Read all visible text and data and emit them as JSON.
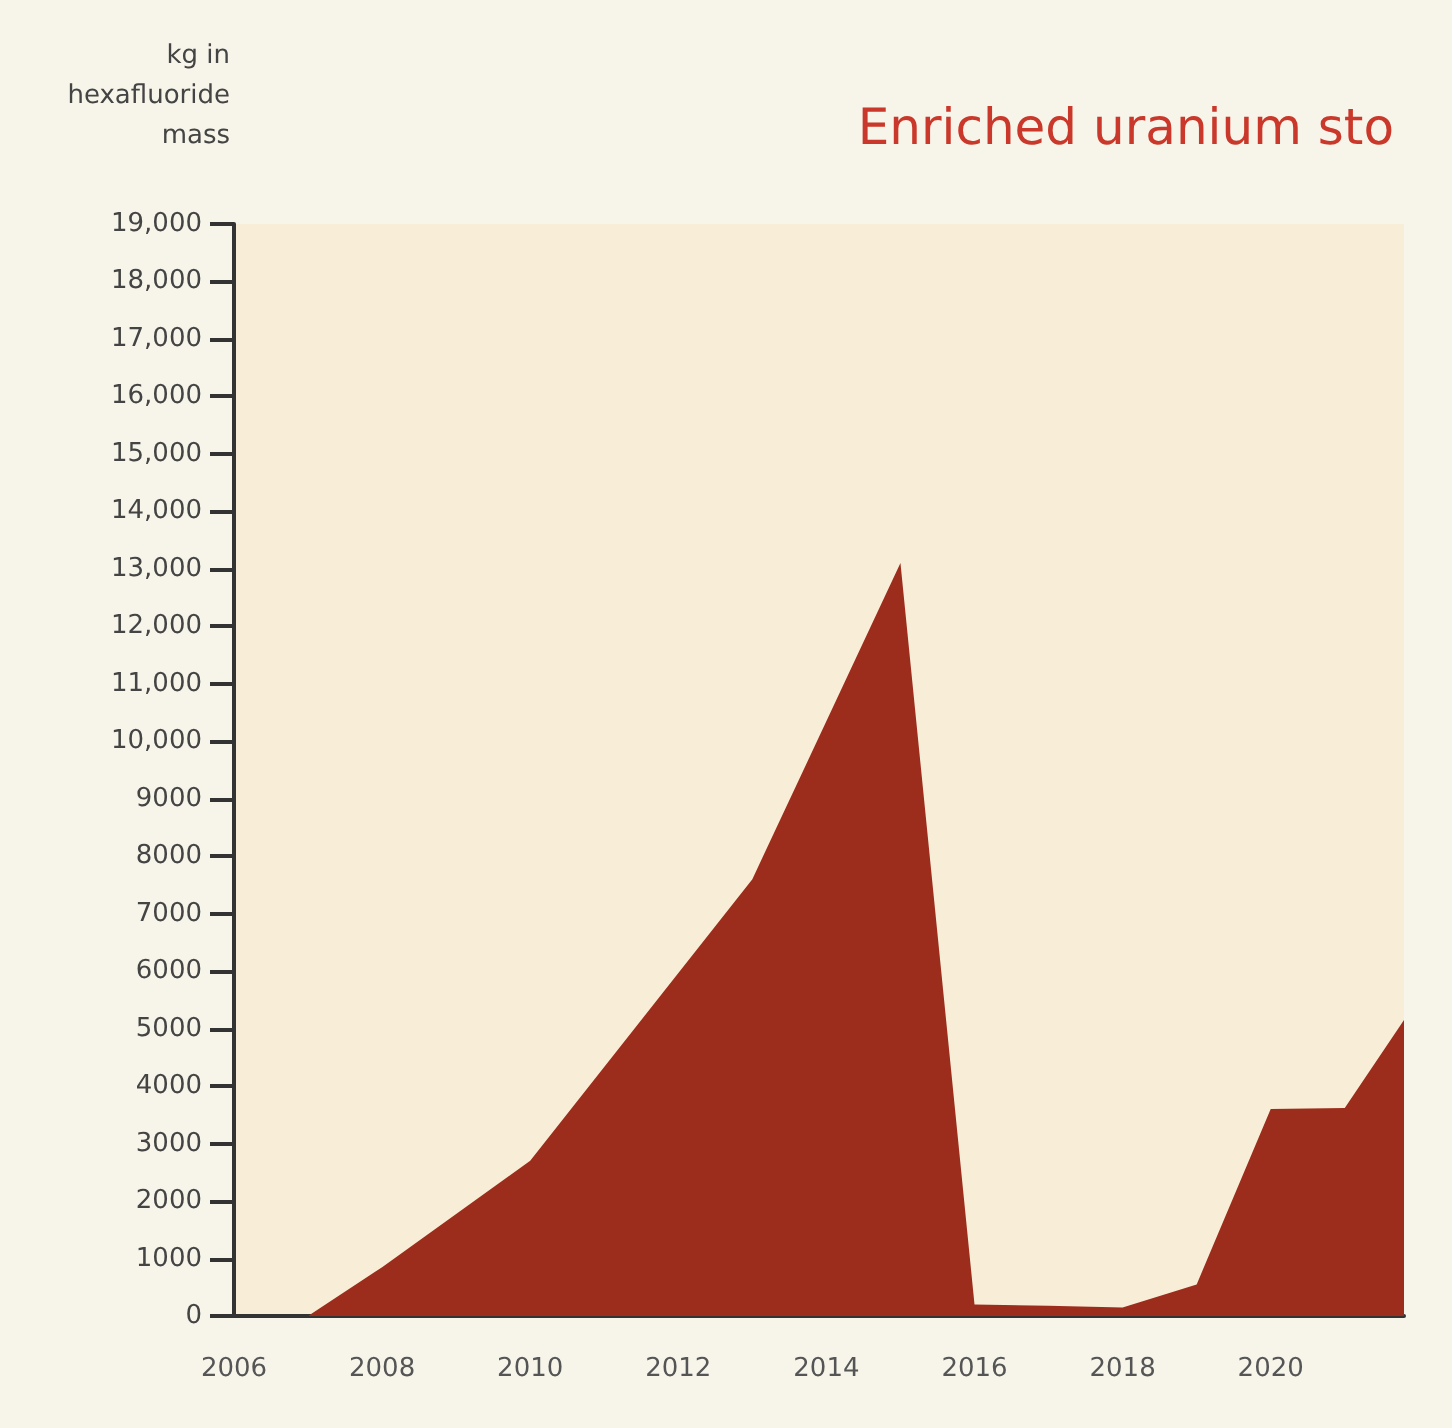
{
  "chart_data": {
    "type": "area",
    "title": "Enriched uranium sto",
    "ylabel": "kg in\nhexafluoride\nmass",
    "x": [
      2007,
      2008,
      2010,
      2013,
      2015,
      2016,
      2017,
      2018,
      2019,
      2020,
      2021,
      2021.8
    ],
    "series": [
      {
        "color": "#9c2c1c",
        "values": [
          0,
          850,
          2700,
          7600,
          13100,
          200,
          180,
          150,
          550,
          3600,
          3620,
          5150
        ]
      }
    ],
    "xlim": [
      2006,
      2021.8
    ],
    "xticks": [
      2006,
      2008,
      2010,
      2012,
      2014,
      2016,
      2018,
      2020
    ],
    "ylim": [
      0,
      19000
    ],
    "yticks": [
      0,
      1000,
      2000,
      3000,
      4000,
      5000,
      6000,
      7000,
      8000,
      9000,
      {
        "value": 10000,
        "label": "10,000"
      },
      {
        "value": 11000,
        "label": "11,000"
      },
      {
        "value": 12000,
        "label": "12,000"
      },
      {
        "value": 13000,
        "label": "13,000"
      },
      {
        "value": 14000,
        "label": "14,000"
      },
      {
        "value": 15000,
        "label": "15,000"
      },
      {
        "value": 16000,
        "label": "16,000"
      },
      {
        "value": 17000,
        "label": "17,000"
      },
      {
        "value": 18000,
        "label": "18,000"
      },
      {
        "value": 19000,
        "label": "19,000"
      }
    ],
    "grid": false,
    "marker": "none"
  }
}
